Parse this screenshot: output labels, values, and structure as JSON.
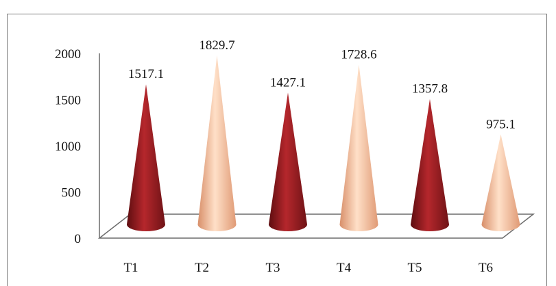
{
  "chart_data": {
    "type": "bar",
    "subtype": "3d-cone",
    "categories": [
      "T1",
      "T2",
      "T3",
      "T4",
      "T5",
      "T6"
    ],
    "values": [
      1517.1,
      1829.7,
      1427.1,
      1728.6,
      1357.8,
      975.1
    ],
    "data_labels": [
      "1517.1",
      "1829.7",
      "1427.1",
      "1728.6",
      "1357.8",
      "975.1"
    ],
    "y_ticks": [
      "0",
      "500",
      "1000",
      "1500",
      "2000"
    ],
    "ylim": [
      0,
      2000
    ],
    "grid": false,
    "legend": "none",
    "colors": {
      "dark_cone": "#9c1f24",
      "light_cone": "#f2b48f",
      "axis": "#666666"
    }
  }
}
